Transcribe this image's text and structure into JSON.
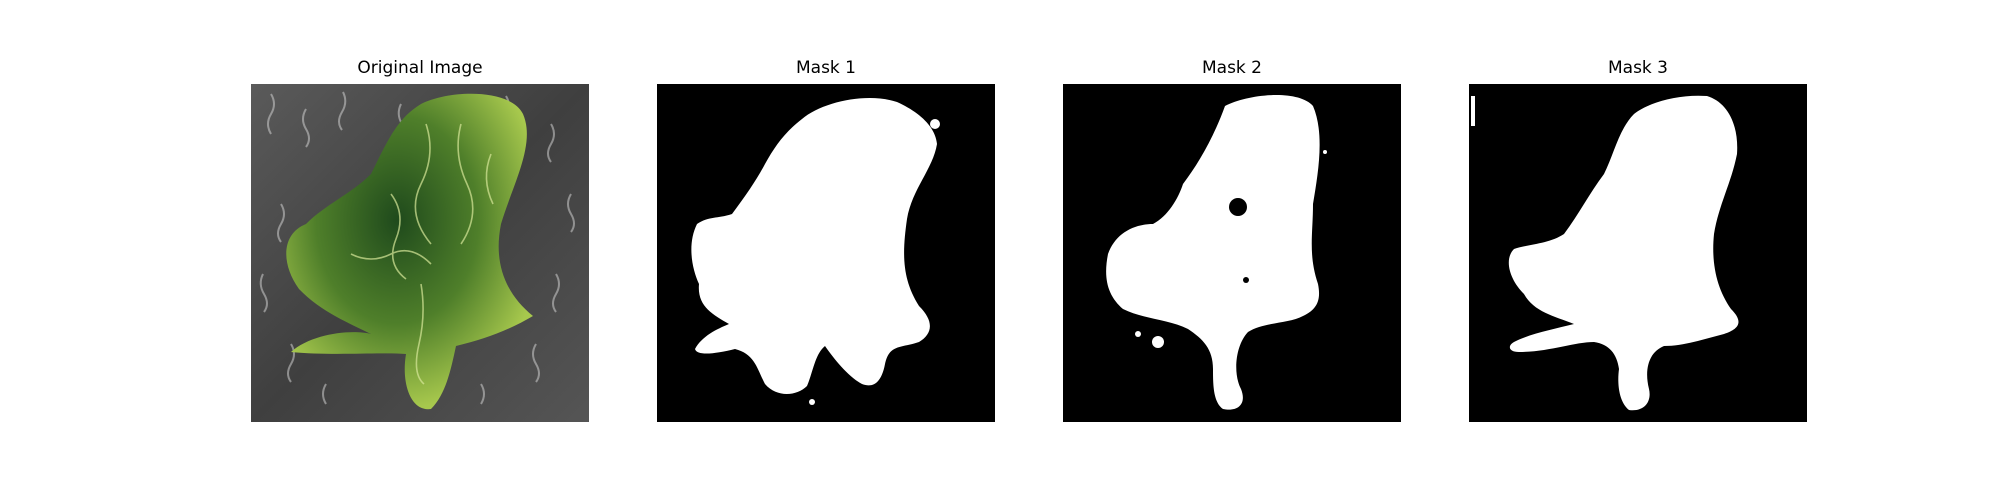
{
  "panels": [
    {
      "title": "Original Image",
      "kind": "photo",
      "subject": "leaf-on-textured-background"
    },
    {
      "title": "Mask 1",
      "kind": "binary-mask"
    },
    {
      "title": "Mask 2",
      "kind": "binary-mask"
    },
    {
      "title": "Mask 3",
      "kind": "binary-mask"
    }
  ],
  "colors": {
    "page_background": "#ffffff",
    "mask_background": "#000000",
    "mask_foreground": "#ffffff",
    "leaf_dark": "#2f5a20",
    "leaf_mid": "#6d9a33",
    "leaf_light": "#b8d35a",
    "background_gray": "#4a4a4a"
  }
}
